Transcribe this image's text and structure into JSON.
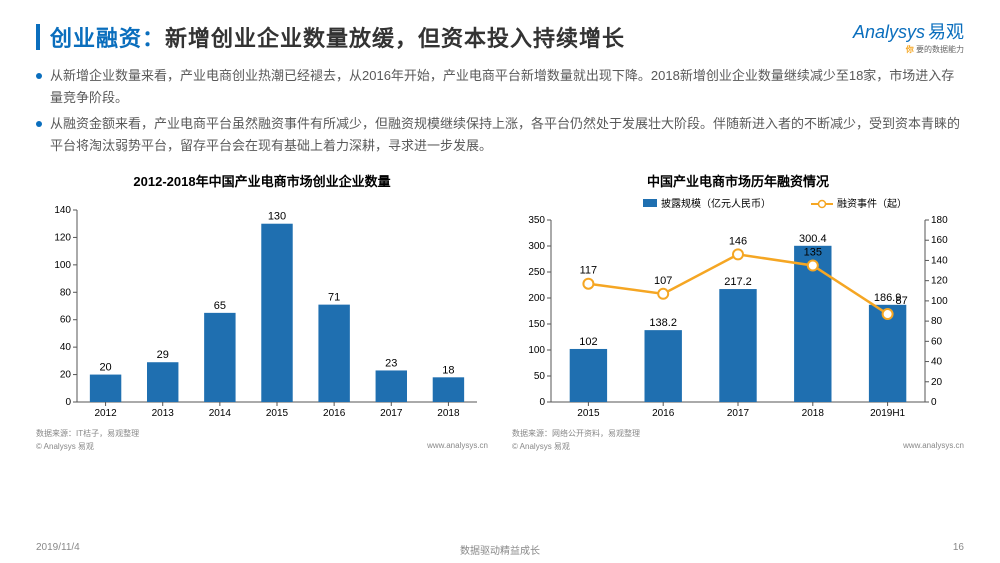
{
  "header": {
    "title_prefix": "创业融资：",
    "title_main": "新增创业企业数量放缓，但资本投入持续增长",
    "title_color_prefix": "#0a6ebd",
    "title_color_main": "#222222",
    "title_bar_color": "#0a6ebd",
    "logo_text": "Analysys",
    "logo_cn": "易观",
    "logo_sub_ni": "你",
    "logo_sub_rest": " 要的数据能力"
  },
  "bullets": [
    "从新增企业数量来看，产业电商创业热潮已经褪去，从2016年开始，产业电商平台新增数量就出现下降。2018新增创业企业数量继续减少至18家，市场进入存量竞争阶段。",
    "从融资金额来看，产业电商平台虽然融资事件有所减少，但融资规模继续保持上涨，各平台仍然处于发展壮大阶段。伴随新进入者的不断减少，受到资本青睐的平台将淘汰弱势平台，留存平台会在现有基础上着力深耕，寻求进一步发展。"
  ],
  "chart_left": {
    "title": "2012-2018年中国产业电商市场创业企业数量",
    "type": "bar",
    "categories": [
      "2012",
      "2013",
      "2014",
      "2015",
      "2016",
      "2017",
      "2018"
    ],
    "values": [
      20,
      29,
      65,
      130,
      71,
      23,
      18
    ],
    "bar_color": "#1f6fb0",
    "label_color": "#000000",
    "label_fontsize": 11,
    "ylim": [
      0,
      140
    ],
    "ytick_step": 20,
    "axis_color": "#555555",
    "grid_color": "#cccccc",
    "tick_fontsize": 10,
    "source": "数据来源：IT桔子，易观整理",
    "copyright": "© Analysys 易观",
    "url": "www.analysys.cn"
  },
  "chart_right": {
    "title": "中国产业电商市场历年融资情况",
    "type": "bar+line",
    "categories": [
      "2015",
      "2016",
      "2017",
      "2018",
      "2019H1"
    ],
    "bar_values": [
      102.0,
      138.2,
      217.2,
      300.4,
      186.9
    ],
    "line_values": [
      117,
      107,
      146,
      135,
      87
    ],
    "bar_color": "#1f6fb0",
    "line_color": "#f5a623",
    "marker_fill": "#ffffff",
    "marker_stroke": "#f5a623",
    "marker_radius": 5,
    "label_color": "#000000",
    "label_fontsize": 11,
    "y_left_lim": [
      0,
      350
    ],
    "y_left_tick_step": 50,
    "y_right_lim": [
      0,
      180
    ],
    "y_right_tick_step": 20,
    "axis_color": "#555555",
    "grid_color": "#cccccc",
    "tick_fontsize": 10,
    "legend": {
      "bar_name": "披露规模（亿元人民币）",
      "line_name": "融资事件（起）",
      "bar_swatch": "#1f6fb0",
      "line_swatch": "#f5a623",
      "fontsize": 10
    },
    "source": "数据来源：网络公开资料，易观整理",
    "copyright": "© Analysys 易观",
    "url": "www.analysys.cn"
  },
  "footer": {
    "date": "2019/11/4",
    "center": "数据驱动精益成长",
    "page": "16"
  },
  "watermark": {
    "opacity": 0.05
  }
}
